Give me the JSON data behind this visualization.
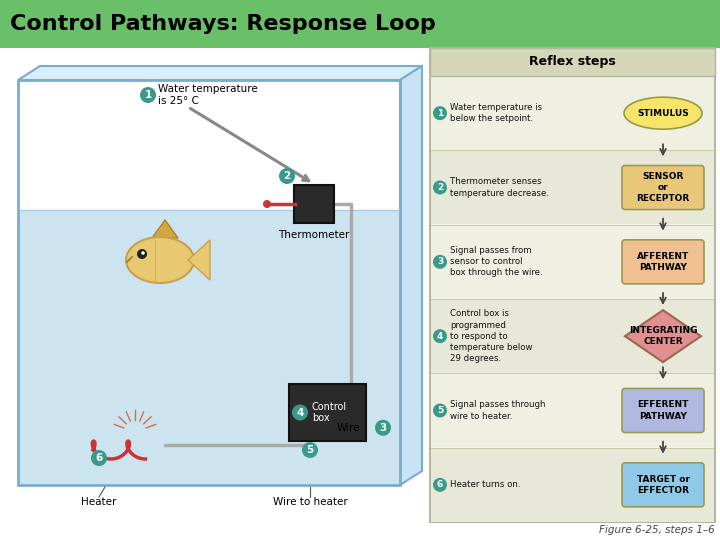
{
  "title": "Control Pathways: Response Loop",
  "title_bg": "#6abf69",
  "title_color": "#000000",
  "reflex_header": "Reflex steps",
  "step_bullet_color": "#3a9a8a",
  "aqua_water_color": "#cce4f0",
  "figure_caption": "Figure 6-25, steps 1–6",
  "steps": [
    {
      "num": 1,
      "text": "Water temperature is\nbelow the setpoint.",
      "shape": "ellipse",
      "label": "STIMULUS",
      "shape_color": "#f5e56b"
    },
    {
      "num": 2,
      "text": "Thermometer senses\ntemperature decrease.",
      "shape": "roundrect",
      "label": "SENSOR\nor\nRECEPTOR",
      "shape_color": "#e8c878"
    },
    {
      "num": 3,
      "text": "Signal passes from\nsensor to control\nbox through the wire.",
      "shape": "roundrect",
      "label": "AFFERENT\nPATHWAY",
      "shape_color": "#f0c090"
    },
    {
      "num": 4,
      "text": "Control box is\nprogrammed\nto respond to\ntemperature below\n29 degrees.",
      "shape": "diamond",
      "label": "INTEGRATING\nCENTER",
      "shape_color": "#e09090"
    },
    {
      "num": 5,
      "text": "Signal passes through\nwire to heater.",
      "shape": "roundrect",
      "label": "EFFERENT\nPATHWAY",
      "shape_color": "#b0b8e0"
    },
    {
      "num": 6,
      "text": "Heater turns on.",
      "shape": "roundrect",
      "label": "TARGET or\nEFFECTOR",
      "shape_color": "#90c8e8"
    }
  ]
}
